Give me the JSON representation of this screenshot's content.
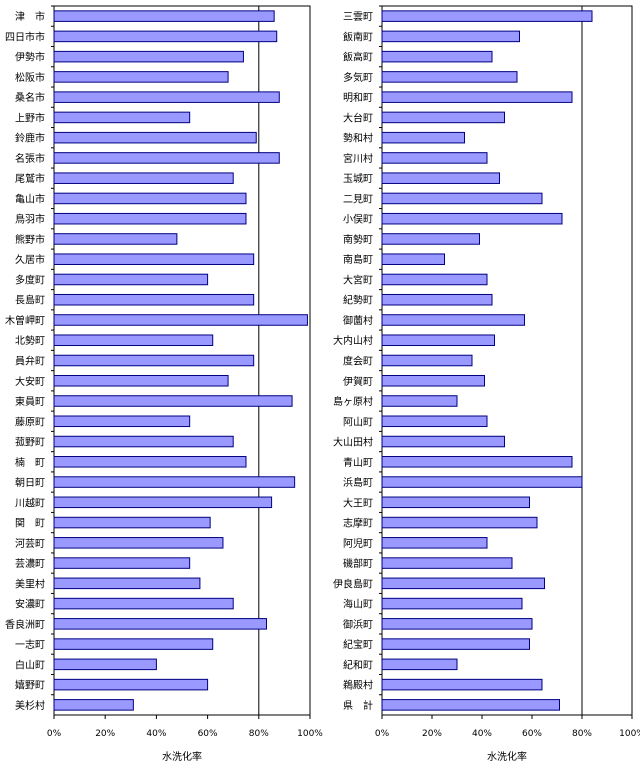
{
  "chart_data": [
    {
      "type": "bar",
      "orientation": "horizontal",
      "categories": [
        "津　市",
        "四日市市",
        "伊勢市",
        "松阪市",
        "桑名市",
        "上野市",
        "鈴鹿市",
        "名張市",
        "尾鷲市",
        "亀山市",
        "鳥羽市",
        "熊野市",
        "久居市",
        "多度町",
        "長島町",
        "木曽岬町",
        "北勢町",
        "員弁町",
        "大安町",
        "東員町",
        "藤原町",
        "菰野町",
        "楠　町",
        "朝日町",
        "川越町",
        "関　町",
        "河芸町",
        "芸濃町",
        "美里村",
        "安濃町",
        "香良洲町",
        "一志町",
        "白山町",
        "嬉野町",
        "美杉村"
      ],
      "values": [
        86,
        87,
        74,
        68,
        88,
        53,
        79,
        88,
        70,
        75,
        75,
        48,
        78,
        60,
        78,
        99,
        62,
        78,
        68,
        93,
        53,
        70,
        75,
        94,
        85,
        61,
        66,
        53,
        57,
        70,
        83,
        62,
        40,
        60,
        31
      ],
      "xlabel": "水洗化率",
      "xlim": [
        0,
        100
      ],
      "xticks": [
        "0%",
        "20%",
        "40%",
        "60%",
        "80%",
        "100%"
      ],
      "grid": "vertical lines at 80% and 100%",
      "bar_color": "#9999ff",
      "bar_stroke": "#000080"
    },
    {
      "type": "bar",
      "orientation": "horizontal",
      "categories": [
        "三雲町",
        "飯南町",
        "飯高町",
        "多気町",
        "明和町",
        "大台町",
        "勢和村",
        "宮川村",
        "玉城町",
        "二見町",
        "小俣町",
        "南勢町",
        "南島町",
        "大宮町",
        "紀勢町",
        "御薗村",
        "大内山村",
        "度会町",
        "伊賀町",
        "島ヶ原村",
        "阿山町",
        "大山田村",
        "青山町",
        "浜島町",
        "大王町",
        "志摩町",
        "阿児町",
        "磯部町",
        "伊良島町",
        "海山町",
        "御浜町",
        "紀宝町",
        "紀和町",
        "鵜殿村",
        "県　計"
      ],
      "values": [
        84,
        55,
        44,
        54,
        76,
        49,
        33,
        42,
        47,
        64,
        72,
        39,
        25,
        42,
        44,
        57,
        45,
        36,
        41,
        30,
        42,
        49,
        76,
        80,
        59,
        62,
        42,
        52,
        65,
        56,
        60,
        59,
        30,
        64,
        71
      ],
      "xlabel": "水洗化率",
      "xlim": [
        0,
        100
      ],
      "xticks": [
        "0%",
        "20%",
        "40%",
        "60%",
        "80%",
        "100%"
      ],
      "grid": "vertical lines at 80% and 100%",
      "bar_color": "#9999ff",
      "bar_stroke": "#000080"
    }
  ]
}
